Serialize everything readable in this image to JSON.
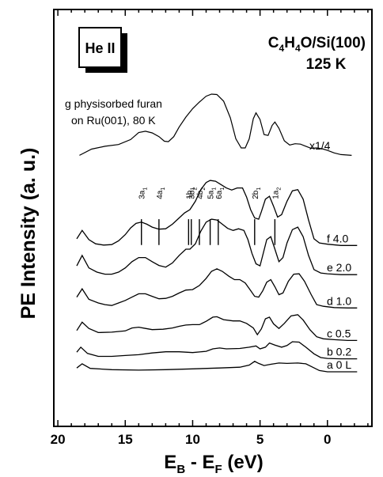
{
  "chart_data": {
    "type": "line",
    "xlabel": {
      "main": "E",
      "sub1": "B",
      "mid": " - E",
      "sub2": "F",
      "unit": " (eV)"
    },
    "ylabel": "PE Intensity (a. u.)",
    "xlim": [
      20.3,
      -3.3
    ],
    "x_reversed": true,
    "ylim": [
      0,
      1
    ],
    "x_ticks": [
      20,
      15,
      10,
      5,
      0
    ],
    "x_tick_labels": [
      "20",
      "15",
      "10",
      "5",
      "0"
    ],
    "badge": "He II",
    "sample": {
      "prefix": "C",
      "s1": "4",
      "mid1": "H",
      "s2": "4",
      "mid2": "O/Si(100)"
    },
    "temperature": "125 K",
    "reference": {
      "label_line1": "g physisorbed furan",
      "label_line2": "on Ru(001), 80 K",
      "scale": "x1/4",
      "points": [
        [
          18.4,
          0.65
        ],
        [
          17.5,
          0.665
        ],
        [
          16.5,
          0.672
        ],
        [
          15.5,
          0.676
        ],
        [
          14.6,
          0.688
        ],
        [
          14.0,
          0.705
        ],
        [
          13.5,
          0.708
        ],
        [
          13.0,
          0.704
        ],
        [
          12.5,
          0.695
        ],
        [
          12.1,
          0.684
        ],
        [
          11.8,
          0.683
        ],
        [
          11.4,
          0.695
        ],
        [
          11.0,
          0.718
        ],
        [
          10.5,
          0.742
        ],
        [
          10.0,
          0.762
        ],
        [
          9.5,
          0.778
        ],
        [
          9.0,
          0.792
        ],
        [
          8.6,
          0.797
        ],
        [
          8.2,
          0.796
        ],
        [
          7.7,
          0.78
        ],
        [
          7.2,
          0.74
        ],
        [
          6.8,
          0.69
        ],
        [
          6.4,
          0.668
        ],
        [
          6.1,
          0.668
        ],
        [
          5.8,
          0.69
        ],
        [
          5.5,
          0.738
        ],
        [
          5.3,
          0.752
        ],
        [
          5.0,
          0.736
        ],
        [
          4.7,
          0.7
        ],
        [
          4.4,
          0.698
        ],
        [
          4.1,
          0.722
        ],
        [
          3.9,
          0.73
        ],
        [
          3.6,
          0.715
        ],
        [
          3.2,
          0.685
        ],
        [
          2.8,
          0.675
        ],
        [
          2.4,
          0.678
        ],
        [
          2.0,
          0.677
        ],
        [
          1.6,
          0.672
        ],
        [
          1.2,
          0.667
        ],
        [
          0.8,
          0.668
        ],
        [
          0.4,
          0.666
        ],
        [
          0.0,
          0.662
        ],
        [
          -0.5,
          0.656
        ],
        [
          -1.0,
          0.652
        ],
        [
          -1.8,
          0.65
        ]
      ]
    },
    "orbital_markers": [
      {
        "label": "3a",
        "sub": "1",
        "x": 13.8
      },
      {
        "label": "4a",
        "sub": "1",
        "x": 12.5
      },
      {
        "label": "1b",
        "sub": "1",
        "x": 10.3
      },
      {
        "label": "3b",
        "sub": "2",
        "x": 10.1
      },
      {
        "label": "4b",
        "sub": "2",
        "x": 9.5
      },
      {
        "label": "5a",
        "sub": "1",
        "x": 8.7
      },
      {
        "label": "6a",
        "sub": "1",
        "x": 8.1
      },
      {
        "label": "2b",
        "sub": "1",
        "x": 5.4
      },
      {
        "label": "1a",
        "sub": "2",
        "x": 3.9
      }
    ],
    "series": [
      {
        "name": "a 0 L",
        "points": [
          [
            18.6,
            0.14
          ],
          [
            18.2,
            0.15
          ],
          [
            17.6,
            0.139
          ],
          [
            16,
            0.136
          ],
          [
            14,
            0.135
          ],
          [
            12,
            0.136
          ],
          [
            10,
            0.138
          ],
          [
            8,
            0.14
          ],
          [
            6.5,
            0.142
          ],
          [
            5.8,
            0.147
          ],
          [
            5.4,
            0.156
          ],
          [
            5.1,
            0.151
          ],
          [
            4.7,
            0.146
          ],
          [
            4.2,
            0.149
          ],
          [
            3.6,
            0.152
          ],
          [
            3.0,
            0.151
          ],
          [
            2.2,
            0.152
          ],
          [
            1.6,
            0.15
          ],
          [
            1.1,
            0.142
          ],
          [
            0.6,
            0.134
          ],
          [
            0.0,
            0.131
          ],
          [
            -0.6,
            0.131
          ],
          [
            -1.3,
            0.131
          ],
          [
            -2.2,
            0.131
          ]
        ]
      },
      {
        "name": "b 0.2",
        "points": [
          [
            18.6,
            0.178
          ],
          [
            18.3,
            0.19
          ],
          [
            17.8,
            0.175
          ],
          [
            17.0,
            0.168
          ],
          [
            16,
            0.168
          ],
          [
            15,
            0.17
          ],
          [
            14,
            0.172
          ],
          [
            13,
            0.176
          ],
          [
            12,
            0.179
          ],
          [
            11,
            0.179
          ],
          [
            10,
            0.177
          ],
          [
            9,
            0.18
          ],
          [
            8.5,
            0.186
          ],
          [
            8.0,
            0.188
          ],
          [
            7.5,
            0.186
          ],
          [
            6.5,
            0.187
          ],
          [
            5.8,
            0.19
          ],
          [
            5.3,
            0.193
          ],
          [
            5.0,
            0.186
          ],
          [
            4.6,
            0.19
          ],
          [
            4.3,
            0.2
          ],
          [
            3.9,
            0.195
          ],
          [
            3.4,
            0.19
          ],
          [
            3.0,
            0.194
          ],
          [
            2.6,
            0.203
          ],
          [
            2.1,
            0.202
          ],
          [
            1.6,
            0.19
          ],
          [
            1.0,
            0.174
          ],
          [
            0.5,
            0.165
          ],
          [
            0.0,
            0.163
          ],
          [
            -1.0,
            0.162
          ],
          [
            -2.2,
            0.162
          ]
        ]
      },
      {
        "name": "c 0.5",
        "points": [
          [
            18.6,
            0.23
          ],
          [
            18.2,
            0.25
          ],
          [
            17.7,
            0.235
          ],
          [
            17.0,
            0.225
          ],
          [
            16,
            0.226
          ],
          [
            15,
            0.229
          ],
          [
            14.5,
            0.236
          ],
          [
            14.0,
            0.238
          ],
          [
            13.5,
            0.235
          ],
          [
            13,
            0.232
          ],
          [
            12.2,
            0.233
          ],
          [
            11.5,
            0.236
          ],
          [
            11,
            0.24
          ],
          [
            10.5,
            0.243
          ],
          [
            10,
            0.244
          ],
          [
            9.5,
            0.244
          ],
          [
            9.0,
            0.252
          ],
          [
            8.5,
            0.262
          ],
          [
            8.2,
            0.263
          ],
          [
            7.7,
            0.256
          ],
          [
            7.0,
            0.253
          ],
          [
            6.5,
            0.253
          ],
          [
            6.0,
            0.247
          ],
          [
            5.5,
            0.236
          ],
          [
            5.2,
            0.22
          ],
          [
            4.9,
            0.234
          ],
          [
            4.6,
            0.258
          ],
          [
            4.3,
            0.262
          ],
          [
            4.0,
            0.246
          ],
          [
            3.6,
            0.235
          ],
          [
            3.2,
            0.247
          ],
          [
            2.7,
            0.265
          ],
          [
            2.2,
            0.268
          ],
          [
            1.8,
            0.255
          ],
          [
            1.3,
            0.232
          ],
          [
            0.8,
            0.215
          ],
          [
            0.3,
            0.21
          ],
          [
            -0.5,
            0.208
          ],
          [
            -1.5,
            0.206
          ],
          [
            -2.2,
            0.206
          ]
        ]
      },
      {
        "name": "d 1.0",
        "points": [
          [
            18.6,
            0.31
          ],
          [
            18.2,
            0.33
          ],
          [
            17.7,
            0.305
          ],
          [
            17.0,
            0.296
          ],
          [
            16.5,
            0.292
          ],
          [
            16,
            0.29
          ],
          [
            15.5,
            0.296
          ],
          [
            15,
            0.302
          ],
          [
            14.5,
            0.31
          ],
          [
            14,
            0.318
          ],
          [
            13.5,
            0.318
          ],
          [
            13,
            0.312
          ],
          [
            12.5,
            0.306
          ],
          [
            12,
            0.307
          ],
          [
            11.5,
            0.312
          ],
          [
            11,
            0.32
          ],
          [
            10.5,
            0.327
          ],
          [
            10,
            0.328
          ],
          [
            9.5,
            0.338
          ],
          [
            9,
            0.355
          ],
          [
            8.6,
            0.372
          ],
          [
            8.2,
            0.378
          ],
          [
            7.8,
            0.372
          ],
          [
            7.3,
            0.36
          ],
          [
            6.9,
            0.352
          ],
          [
            6.5,
            0.352
          ],
          [
            6.1,
            0.344
          ],
          [
            5.7,
            0.326
          ],
          [
            5.4,
            0.312
          ],
          [
            5.1,
            0.31
          ],
          [
            4.8,
            0.325
          ],
          [
            4.5,
            0.346
          ],
          [
            4.2,
            0.352
          ],
          [
            3.9,
            0.335
          ],
          [
            3.6,
            0.316
          ],
          [
            3.3,
            0.32
          ],
          [
            2.9,
            0.348
          ],
          [
            2.5,
            0.365
          ],
          [
            2.1,
            0.366
          ],
          [
            1.7,
            0.348
          ],
          [
            1.2,
            0.316
          ],
          [
            0.8,
            0.292
          ],
          [
            0.3,
            0.288
          ],
          [
            -0.5,
            0.285
          ],
          [
            -1.5,
            0.284
          ],
          [
            -2.2,
            0.284
          ]
        ]
      },
      {
        "name": "e 2.0",
        "points": [
          [
            18.6,
            0.385
          ],
          [
            18.2,
            0.41
          ],
          [
            17.7,
            0.38
          ],
          [
            17.1,
            0.37
          ],
          [
            16.5,
            0.365
          ],
          [
            16,
            0.365
          ],
          [
            15.5,
            0.37
          ],
          [
            15,
            0.38
          ],
          [
            14.5,
            0.395
          ],
          [
            14,
            0.405
          ],
          [
            13.5,
            0.405
          ],
          [
            13,
            0.395
          ],
          [
            12.5,
            0.386
          ],
          [
            12,
            0.382
          ],
          [
            11.5,
            0.392
          ],
          [
            11,
            0.41
          ],
          [
            10.5,
            0.425
          ],
          [
            10.2,
            0.425
          ],
          [
            9.8,
            0.438
          ],
          [
            9.4,
            0.468
          ],
          [
            9.0,
            0.49
          ],
          [
            8.6,
            0.497
          ],
          [
            8.2,
            0.495
          ],
          [
            7.8,
            0.485
          ],
          [
            7.4,
            0.475
          ],
          [
            7.0,
            0.47
          ],
          [
            6.6,
            0.474
          ],
          [
            6.2,
            0.47
          ],
          [
            5.9,
            0.448
          ],
          [
            5.6,
            0.415
          ],
          [
            5.3,
            0.39
          ],
          [
            5.0,
            0.385
          ],
          [
            4.8,
            0.41
          ],
          [
            4.5,
            0.448
          ],
          [
            4.2,
            0.455
          ],
          [
            3.9,
            0.425
          ],
          [
            3.6,
            0.395
          ],
          [
            3.3,
            0.405
          ],
          [
            3.0,
            0.44
          ],
          [
            2.6,
            0.472
          ],
          [
            2.2,
            0.478
          ],
          [
            1.8,
            0.455
          ],
          [
            1.4,
            0.41
          ],
          [
            1.0,
            0.376
          ],
          [
            0.5,
            0.368
          ],
          [
            0.0,
            0.366
          ],
          [
            -1.0,
            0.364
          ],
          [
            -2.2,
            0.364
          ]
        ]
      },
      {
        "name": "f 4.0",
        "points": [
          [
            18.6,
            0.45
          ],
          [
            18.2,
            0.47
          ],
          [
            17.7,
            0.448
          ],
          [
            17.2,
            0.438
          ],
          [
            16.6,
            0.435
          ],
          [
            16,
            0.436
          ],
          [
            15.5,
            0.445
          ],
          [
            15,
            0.46
          ],
          [
            14.6,
            0.476
          ],
          [
            14.2,
            0.487
          ],
          [
            13.8,
            0.49
          ],
          [
            13.4,
            0.485
          ],
          [
            13,
            0.478
          ],
          [
            12.5,
            0.473
          ],
          [
            12,
            0.474
          ],
          [
            11.5,
            0.485
          ],
          [
            11,
            0.5
          ],
          [
            10.6,
            0.512
          ],
          [
            10.2,
            0.52
          ],
          [
            9.8,
            0.54
          ],
          [
            9.4,
            0.568
          ],
          [
            9.0,
            0.585
          ],
          [
            8.7,
            0.59
          ],
          [
            8.3,
            0.588
          ],
          [
            7.9,
            0.58
          ],
          [
            7.5,
            0.572
          ],
          [
            7.1,
            0.567
          ],
          [
            6.7,
            0.572
          ],
          [
            6.3,
            0.572
          ],
          [
            6.0,
            0.55
          ],
          [
            5.7,
            0.52
          ],
          [
            5.4,
            0.5
          ],
          [
            5.1,
            0.497
          ],
          [
            4.9,
            0.515
          ],
          [
            4.6,
            0.545
          ],
          [
            4.3,
            0.552
          ],
          [
            4.0,
            0.528
          ],
          [
            3.7,
            0.502
          ],
          [
            3.4,
            0.508
          ],
          [
            3.0,
            0.54
          ],
          [
            2.6,
            0.565
          ],
          [
            2.2,
            0.568
          ],
          [
            1.8,
            0.545
          ],
          [
            1.4,
            0.495
          ],
          [
            1.0,
            0.45
          ],
          [
            0.6,
            0.44
          ],
          [
            0.0,
            0.437
          ],
          [
            -1.0,
            0.434
          ],
          [
            -2.2,
            0.434
          ]
        ]
      }
    ]
  }
}
